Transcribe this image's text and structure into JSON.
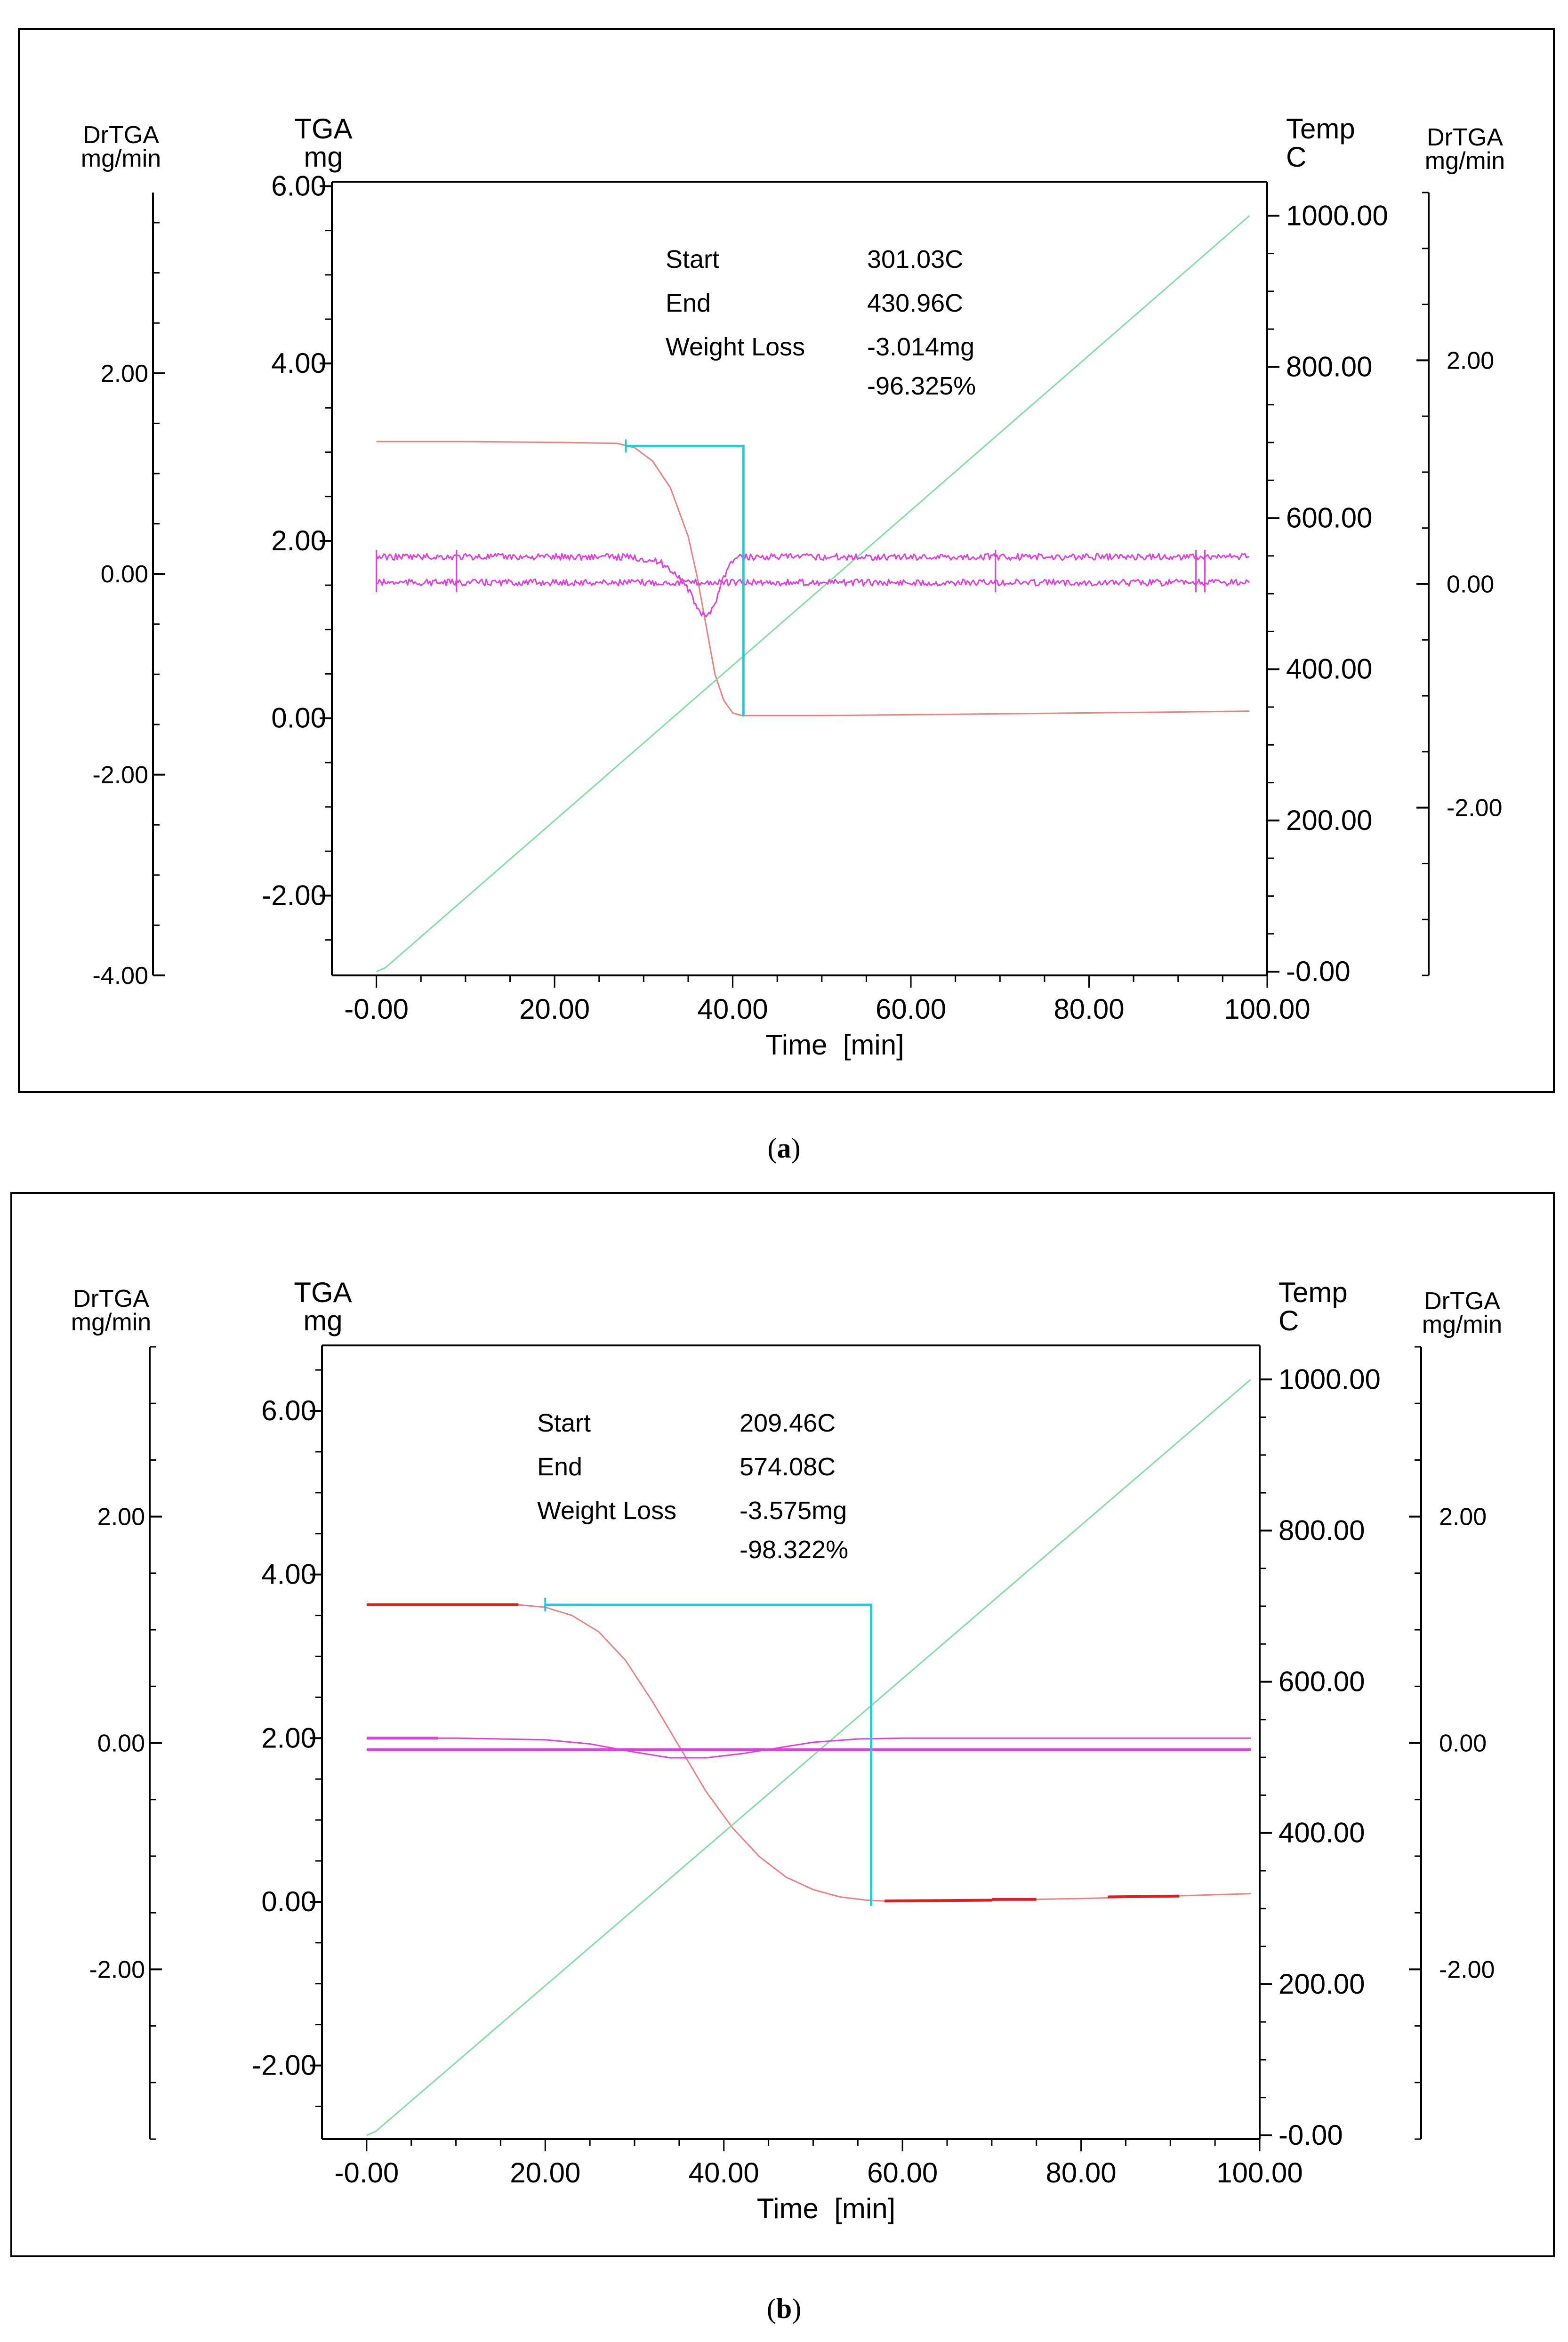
{
  "chart_data": [
    {
      "type": "line",
      "panel": "a",
      "caption": "a",
      "x_axis": {
        "label": "Time  [min]",
        "range": [
          -5,
          100
        ],
        "ticks": [
          "-0.00",
          "20.00",
          "40.00",
          "60.00",
          "80.00",
          "100.00"
        ]
      },
      "y_axes": {
        "left_outer": {
          "title": "DrTGA",
          "unit": "mg/min",
          "range": [
            -4,
            3.8
          ],
          "ticks": [
            [
              "2.00",
              2
            ],
            [
              "0.00",
              0
            ],
            [
              "-2.00",
              -2
            ],
            [
              "-4.00",
              -4
            ]
          ]
        },
        "left_inner": {
          "title": "TGA",
          "unit": "mg",
          "range": [
            -2.9,
            6.05
          ],
          "ticks": [
            [
              "6.00",
              6
            ],
            [
              "4.00",
              4
            ],
            [
              "2.00",
              2
            ],
            [
              "0.00",
              0
            ],
            [
              "-2.00",
              -2
            ]
          ]
        },
        "right_inner": {
          "title": "Temp",
          "unit": "C",
          "range": [
            -5,
            1045
          ],
          "ticks": [
            [
              "1000.00",
              1000
            ],
            [
              "800.00",
              800
            ],
            [
              "600.00",
              600
            ],
            [
              "400.00",
              400
            ],
            [
              "200.00",
              200
            ],
            [
              "-0.00",
              0
            ]
          ]
        },
        "right_outer": {
          "title": "DrTGA",
          "unit": "mg/min",
          "range": [
            -3.5,
            3.5
          ],
          "ticks": [
            [
              "2.00",
              2
            ],
            [
              "0.00",
              0
            ],
            [
              "-2.00",
              -2
            ]
          ]
        }
      },
      "annotation": {
        "start_label": "Start",
        "start_value": "301.03C",
        "end_label": "End",
        "end_value": "430.96C",
        "loss_label": "Weight Loss",
        "loss_mg": "-3.014mg",
        "loss_pct": "-96.325%"
      },
      "step_marker": {
        "x_start": 28,
        "x_end": 41.2,
        "y_top": 3.07,
        "y_bottom": 0.02
      },
      "colors": {
        "tga": "#f08080",
        "temp": "#7de0a0",
        "drtga": "#e040e0",
        "marker": "#20c8e0",
        "tga_bold": "#e02020"
      },
      "series": [
        {
          "axis": "left_inner",
          "color_key": "tga",
          "x": [
            0,
            10,
            20,
            27,
            29,
            31,
            33,
            35,
            36,
            37,
            38,
            39,
            40,
            41,
            42,
            45,
            50,
            60,
            70,
            80,
            90,
            98
          ],
          "values": [
            3.12,
            3.12,
            3.11,
            3.1,
            3.05,
            2.9,
            2.6,
            2.05,
            1.6,
            1.05,
            0.5,
            0.2,
            0.06,
            0.03,
            0.03,
            0.03,
            0.03,
            0.04,
            0.05,
            0.06,
            0.07,
            0.08
          ]
        },
        {
          "axis": "right_inner",
          "color_key": "temp",
          "x": [
            0,
            1,
            98
          ],
          "values": [
            0,
            5,
            1000
          ]
        },
        {
          "axis": "left_inner",
          "color_key": "drtga",
          "noise": true,
          "x": [
            0,
            10,
            20,
            28,
            30,
            32,
            34,
            35,
            36,
            37,
            38,
            39,
            40,
            41,
            42,
            50,
            60,
            70,
            80,
            90,
            98
          ],
          "values": [
            1.82,
            1.82,
            1.82,
            1.82,
            1.8,
            1.75,
            1.6,
            1.45,
            1.25,
            1.12,
            1.3,
            1.6,
            1.78,
            1.82,
            1.82,
            1.82,
            1.82,
            1.82,
            1.82,
            1.82,
            1.82
          ]
        },
        {
          "axis": "left_inner",
          "color_key": "drtga",
          "noise": true,
          "x": [
            0,
            98
          ],
          "values": [
            1.53,
            1.53
          ]
        }
      ]
    },
    {
      "type": "line",
      "panel": "b",
      "caption": "b",
      "x_axis": {
        "label": "Time  [min]",
        "range": [
          -5,
          100
        ],
        "ticks": [
          "-0.00",
          "20.00",
          "40.00",
          "60.00",
          "80.00",
          "100.00"
        ]
      },
      "y_axes": {
        "left_outer": {
          "title": "DrTGA",
          "unit": "mg/min",
          "range": [
            -3.5,
            3.5
          ],
          "ticks": [
            [
              "2.00",
              2
            ],
            [
              "0.00",
              0
            ],
            [
              "-2.00",
              -2
            ]
          ]
        },
        "left_inner": {
          "title": "TGA",
          "unit": "mg",
          "range": [
            -2.9,
            6.8
          ],
          "ticks": [
            [
              "6.00",
              6
            ],
            [
              "4.00",
              4
            ],
            [
              "2.00",
              2
            ],
            [
              "0.00",
              0
            ],
            [
              "-2.00",
              -2
            ]
          ]
        },
        "right_inner": {
          "title": "Temp",
          "unit": "C",
          "range": [
            -5,
            1045
          ],
          "ticks": [
            [
              "1000.00",
              1000
            ],
            [
              "800.00",
              800
            ],
            [
              "600.00",
              600
            ],
            [
              "400.00",
              400
            ],
            [
              "200.00",
              200
            ],
            [
              "-0.00",
              0
            ]
          ]
        },
        "right_outer": {
          "title": "DrTGA",
          "unit": "mg/min",
          "range": [
            -3.5,
            3.5
          ],
          "ticks": [
            [
              "2.00",
              2
            ],
            [
              "0.00",
              0
            ],
            [
              "-2.00",
              -2
            ]
          ]
        }
      },
      "annotation": {
        "start_label": "Start",
        "start_value": "209.46C",
        "end_label": "End",
        "end_value": "574.08C",
        "loss_label": "Weight Loss",
        "loss_mg": "-3.575mg",
        "loss_pct": "-98.322%"
      },
      "step_marker": {
        "x_start": 20,
        "x_end": 56.5,
        "y_top": 3.63,
        "y_bottom": -0.05
      },
      "colors": {
        "tga": "#f08080",
        "temp": "#7de0a0",
        "drtga": "#e040e0",
        "marker": "#20c8e0",
        "tga_bold": "#e02020"
      },
      "series": [
        {
          "axis": "left_inner",
          "color_key": "tga",
          "x": [
            0,
            10,
            17,
            20,
            23,
            26,
            29,
            32,
            35,
            38,
            41,
            44,
            47,
            50,
            53,
            56,
            58,
            65,
            70,
            80,
            90,
            99
          ],
          "values": [
            3.63,
            3.63,
            3.63,
            3.6,
            3.5,
            3.3,
            2.95,
            2.45,
            1.9,
            1.35,
            0.9,
            0.55,
            0.3,
            0.15,
            0.06,
            0.02,
            0.01,
            0.01,
            0.02,
            0.04,
            0.07,
            0.1
          ]
        },
        {
          "axis": "left_inner",
          "color_key": "tga_bold",
          "bold": true,
          "x": [
            0,
            17
          ],
          "values": [
            3.63,
            3.63
          ]
        },
        {
          "axis": "left_inner",
          "color_key": "tga_bold",
          "bold": true,
          "x": [
            58,
            70
          ],
          "values": [
            0.01,
            0.02
          ]
        },
        {
          "axis": "left_inner",
          "color_key": "tga_bold",
          "bold": true,
          "x": [
            70,
            75
          ],
          "values": [
            0.03,
            0.03
          ]
        },
        {
          "axis": "left_inner",
          "color_key": "tga_bold",
          "bold": true,
          "x": [
            83,
            91
          ],
          "values": [
            0.06,
            0.07
          ]
        },
        {
          "axis": "right_inner",
          "color_key": "temp",
          "x": [
            0,
            1,
            99
          ],
          "values": [
            0,
            5,
            1000
          ]
        },
        {
          "axis": "left_inner",
          "color_key": "drtga",
          "x": [
            0,
            10,
            20,
            25,
            30,
            34,
            38,
            42,
            46,
            50,
            55,
            60,
            70,
            80,
            90,
            99
          ],
          "values": [
            2.0,
            2.0,
            1.98,
            1.93,
            1.83,
            1.76,
            1.76,
            1.81,
            1.88,
            1.95,
            1.99,
            2.0,
            2.0,
            2.0,
            2.0,
            2.0
          ]
        },
        {
          "axis": "left_inner",
          "color_key": "drtga",
          "bold": true,
          "x": [
            0,
            8
          ],
          "values": [
            2.0,
            2.0
          ]
        },
        {
          "axis": "left_inner",
          "color_key": "drtga",
          "bold": true,
          "x": [
            0,
            99
          ],
          "values": [
            1.86,
            1.86
          ]
        }
      ]
    }
  ]
}
